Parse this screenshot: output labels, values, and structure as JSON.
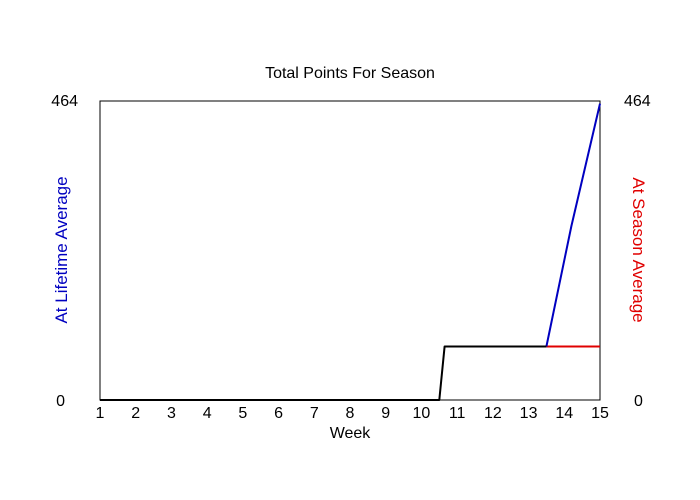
{
  "chart_data": {
    "type": "line",
    "title": "Total Points For Season",
    "xlabel": "Week",
    "ylabel_left": "At Lifetime Average",
    "ylabel_right": "At Season Average",
    "x_ticks": [
      1,
      2,
      3,
      4,
      5,
      6,
      7,
      8,
      9,
      10,
      11,
      12,
      13,
      14,
      15
    ],
    "xlim": [
      1,
      15
    ],
    "ylim": [
      0,
      464
    ],
    "y_tick_labels": [
      "0",
      "464"
    ],
    "grid": false,
    "colors": {
      "lifetime": "#0000c0",
      "season": "#e00000",
      "actual": "#000000",
      "ylabel_left": "#0000c0",
      "ylabel_right": "#e00000"
    },
    "series": [
      {
        "key": "actual",
        "x": [
          1,
          10.5,
          10.65,
          13.5
        ],
        "y": [
          0,
          0,
          83,
          83
        ]
      },
      {
        "key": "lifetime",
        "x": [
          13.5,
          14.2,
          15
        ],
        "y": [
          83,
          270,
          460
        ]
      },
      {
        "key": "season",
        "x": [
          13.5,
          15
        ],
        "y": [
          83,
          83
        ]
      }
    ]
  }
}
